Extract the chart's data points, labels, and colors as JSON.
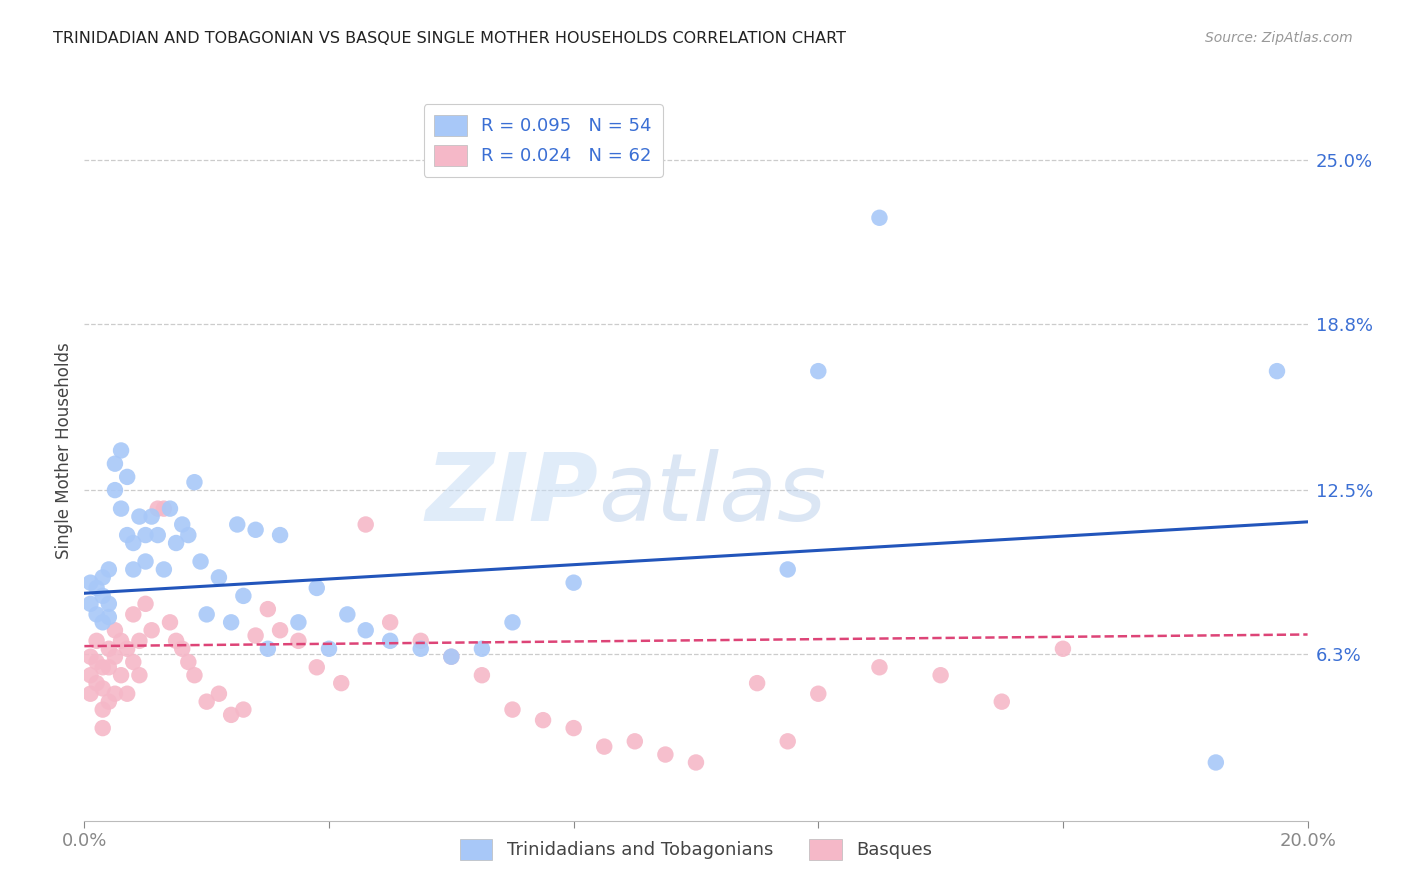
{
  "title": "TRINIDADIAN AND TOBAGONIAN VS BASQUE SINGLE MOTHER HOUSEHOLDS CORRELATION CHART",
  "source": "Source: ZipAtlas.com",
  "ylabel": "Single Mother Households",
  "xlim": [
    0.0,
    0.2
  ],
  "ylim": [
    0.0,
    0.28
  ],
  "ytick_labels_right": [
    "25.0%",
    "18.8%",
    "12.5%",
    "6.3%"
  ],
  "ytick_vals_right": [
    0.25,
    0.188,
    0.125,
    0.063
  ],
  "watermark_zip": "ZIP",
  "watermark_atlas": "atlas",
  "blue_color": "#a8c8f8",
  "pink_color": "#f5b8c8",
  "blue_line_color": "#2255bb",
  "pink_line_color": "#dd4477",
  "blue_intercept": 0.086,
  "blue_slope": 0.135,
  "pink_intercept": 0.066,
  "pink_slope": 0.022,
  "blue_x": [
    0.001,
    0.001,
    0.002,
    0.002,
    0.003,
    0.003,
    0.003,
    0.004,
    0.004,
    0.004,
    0.005,
    0.005,
    0.006,
    0.006,
    0.007,
    0.007,
    0.008,
    0.008,
    0.009,
    0.01,
    0.01,
    0.011,
    0.012,
    0.013,
    0.014,
    0.015,
    0.016,
    0.017,
    0.018,
    0.019,
    0.02,
    0.022,
    0.024,
    0.025,
    0.026,
    0.028,
    0.03,
    0.032,
    0.035,
    0.038,
    0.04,
    0.043,
    0.046,
    0.05,
    0.055,
    0.06,
    0.065,
    0.07,
    0.08,
    0.115,
    0.12,
    0.13,
    0.185,
    0.195
  ],
  "blue_y": [
    0.09,
    0.082,
    0.088,
    0.078,
    0.092,
    0.085,
    0.075,
    0.082,
    0.077,
    0.095,
    0.135,
    0.125,
    0.14,
    0.118,
    0.13,
    0.108,
    0.105,
    0.095,
    0.115,
    0.108,
    0.098,
    0.115,
    0.108,
    0.095,
    0.118,
    0.105,
    0.112,
    0.108,
    0.128,
    0.098,
    0.078,
    0.092,
    0.075,
    0.112,
    0.085,
    0.11,
    0.065,
    0.108,
    0.075,
    0.088,
    0.065,
    0.078,
    0.072,
    0.068,
    0.065,
    0.062,
    0.065,
    0.075,
    0.09,
    0.095,
    0.17,
    0.228,
    0.022,
    0.17
  ],
  "pink_x": [
    0.001,
    0.001,
    0.001,
    0.002,
    0.002,
    0.002,
    0.003,
    0.003,
    0.003,
    0.003,
    0.004,
    0.004,
    0.004,
    0.005,
    0.005,
    0.005,
    0.006,
    0.006,
    0.007,
    0.007,
    0.008,
    0.008,
    0.009,
    0.009,
    0.01,
    0.011,
    0.012,
    0.013,
    0.014,
    0.015,
    0.016,
    0.017,
    0.018,
    0.02,
    0.022,
    0.024,
    0.026,
    0.028,
    0.03,
    0.032,
    0.035,
    0.038,
    0.042,
    0.046,
    0.05,
    0.055,
    0.06,
    0.065,
    0.07,
    0.075,
    0.08,
    0.085,
    0.09,
    0.095,
    0.1,
    0.11,
    0.115,
    0.12,
    0.13,
    0.14,
    0.15,
    0.16
  ],
  "pink_y": [
    0.062,
    0.055,
    0.048,
    0.068,
    0.06,
    0.052,
    0.058,
    0.05,
    0.042,
    0.035,
    0.065,
    0.058,
    0.045,
    0.072,
    0.062,
    0.048,
    0.068,
    0.055,
    0.065,
    0.048,
    0.078,
    0.06,
    0.068,
    0.055,
    0.082,
    0.072,
    0.118,
    0.118,
    0.075,
    0.068,
    0.065,
    0.06,
    0.055,
    0.045,
    0.048,
    0.04,
    0.042,
    0.07,
    0.08,
    0.072,
    0.068,
    0.058,
    0.052,
    0.112,
    0.075,
    0.068,
    0.062,
    0.055,
    0.042,
    0.038,
    0.035,
    0.028,
    0.03,
    0.025,
    0.022,
    0.052,
    0.03,
    0.048,
    0.058,
    0.055,
    0.045,
    0.065
  ]
}
